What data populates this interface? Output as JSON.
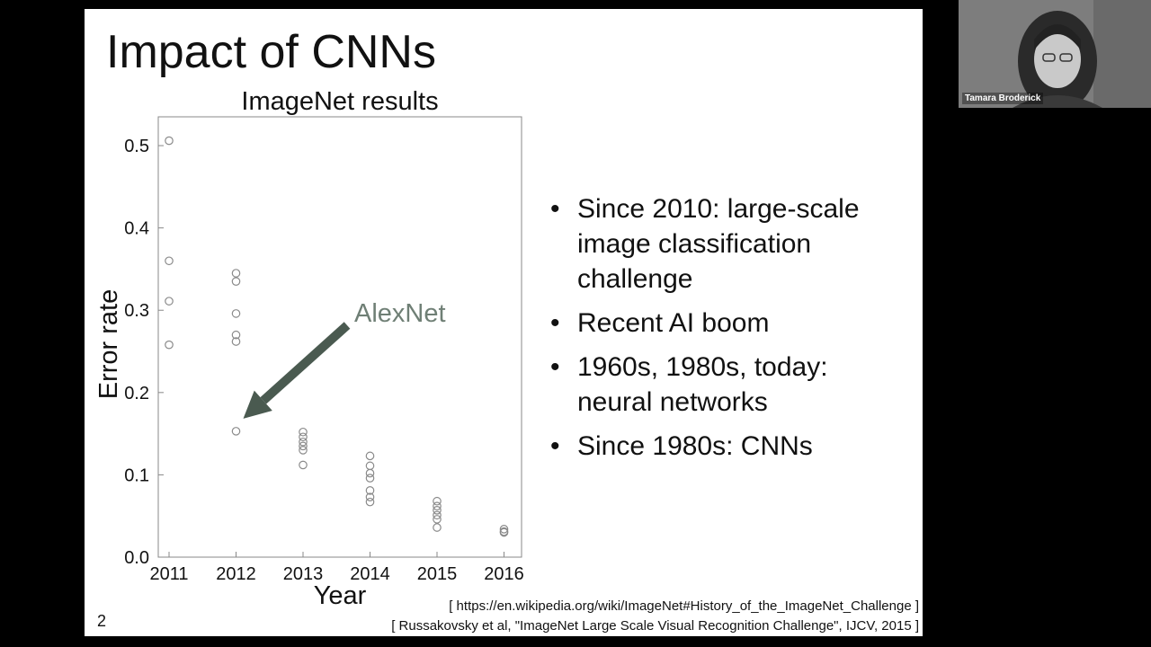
{
  "slide": {
    "title": "Impact of CNNs",
    "page_number": "2",
    "bullets": [
      "Since 2010: large-scale image classification challenge",
      "Recent AI boom",
      "1960s, 1980s, today: neural networks",
      "Since 1980s: CNNs"
    ],
    "references": [
      "[ https://en.wikipedia.org/wiki/ImageNet#History_of_the_ImageNet_Challenge ]",
      "[ Russakovsky et al, \"ImageNet Large Scale Visual Recognition Challenge\", IJCV, 2015 ]"
    ]
  },
  "video": {
    "participant_name": "Tamara Broderick"
  },
  "colors": {
    "marker": "#8a8a8a",
    "arrow": "#4a5a50",
    "annotation": "#6f7f75"
  },
  "chart_data": {
    "type": "scatter",
    "title": "ImageNet results",
    "xlabel": "Year",
    "ylabel": "Error rate",
    "xticks": [
      "2011",
      "2012",
      "2013",
      "2014",
      "2015",
      "2016"
    ],
    "yticks": [
      "0.0",
      "0.1",
      "0.2",
      "0.3",
      "0.4",
      "0.5"
    ],
    "xlim": [
      2010.8,
      2016.3
    ],
    "ylim": [
      0.0,
      0.535
    ],
    "grid": false,
    "annotation": {
      "text": "AlexNet",
      "target": {
        "x": 2012,
        "y": 0.153
      }
    },
    "series": [
      {
        "points": [
          {
            "x": 2011,
            "y": 0.506
          },
          {
            "x": 2011,
            "y": 0.36
          },
          {
            "x": 2011,
            "y": 0.311
          },
          {
            "x": 2011,
            "y": 0.258
          },
          {
            "x": 2012,
            "y": 0.345
          },
          {
            "x": 2012,
            "y": 0.335
          },
          {
            "x": 2012,
            "y": 0.296
          },
          {
            "x": 2012,
            "y": 0.27
          },
          {
            "x": 2012,
            "y": 0.262
          },
          {
            "x": 2012,
            "y": 0.153
          },
          {
            "x": 2013,
            "y": 0.152
          },
          {
            "x": 2013,
            "y": 0.146
          },
          {
            "x": 2013,
            "y": 0.14
          },
          {
            "x": 2013,
            "y": 0.135
          },
          {
            "x": 2013,
            "y": 0.13
          },
          {
            "x": 2013,
            "y": 0.112
          },
          {
            "x": 2014,
            "y": 0.123
          },
          {
            "x": 2014,
            "y": 0.111
          },
          {
            "x": 2014,
            "y": 0.102
          },
          {
            "x": 2014,
            "y": 0.096
          },
          {
            "x": 2014,
            "y": 0.081
          },
          {
            "x": 2014,
            "y": 0.073
          },
          {
            "x": 2014,
            "y": 0.067
          },
          {
            "x": 2015,
            "y": 0.068
          },
          {
            "x": 2015,
            "y": 0.062
          },
          {
            "x": 2015,
            "y": 0.057
          },
          {
            "x": 2015,
            "y": 0.051
          },
          {
            "x": 2015,
            "y": 0.046
          },
          {
            "x": 2015,
            "y": 0.036
          },
          {
            "x": 2016,
            "y": 0.034
          },
          {
            "x": 2016,
            "y": 0.031
          },
          {
            "x": 2016,
            "y": 0.03
          }
        ]
      }
    ]
  }
}
